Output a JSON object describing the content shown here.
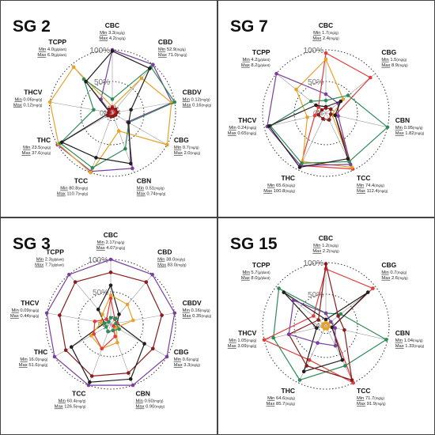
{
  "figure": {
    "colors": {
      "frame": "#444444",
      "grid": "#333333",
      "axis": "#333333",
      "series": [
        "#7a3fa0",
        "#e8a227",
        "#2e8b57",
        "#1f1f1f",
        "#e23b3b",
        "#8b1a1a",
        "#c8c800",
        "#444444"
      ]
    }
  },
  "chart_data": [
    {
      "type": "radar",
      "title": "SG 2",
      "center": "0%",
      "rings": [
        "50%",
        "100%"
      ],
      "axes": [
        {
          "name": "CBC",
          "min": "3.3",
          "min_unit": "(mg/g)",
          "max": "4.2",
          "max_unit": "(mg/g)"
        },
        {
          "name": "CBD",
          "min": "52.9",
          "min_unit": "(mg/g)",
          "max": "71.0",
          "max_unit": "(mg/g)"
        },
        {
          "name": "CBDV",
          "min": "0.12",
          "min_unit": "(mg/g)",
          "max": "0.16",
          "max_unit": "(mg/g)"
        },
        {
          "name": "CBG",
          "min": "0.7",
          "min_unit": "(mg/g)",
          "max": "2.0",
          "max_unit": "(mg/g)"
        },
        {
          "name": "CBN",
          "min": "0.51",
          "min_unit": "(mg/g)",
          "max": "0.74",
          "max_unit": "(mg/g)"
        },
        {
          "name": "TCC",
          "min": "80.8",
          "min_unit": "(mg/g)",
          "max": "110.7",
          "max_unit": "(mg/g)"
        },
        {
          "name": "THC",
          "min": "23.5",
          "min_unit": "(mg/g)",
          "max": "37.6",
          "max_unit": "(mg/g)"
        },
        {
          "name": "THCV",
          "min": "0.06",
          "min_unit": "(mg/g)",
          "max": "0.12",
          "max_unit": "(mg/g)"
        },
        {
          "name": "TCPP",
          "min": "4.0",
          "min_unit": "(g/plant)",
          "max": "6.9",
          "max_unit": "(g/plant)"
        }
      ],
      "series": [
        {
          "color": "#7a3fa0",
          "values": [
            1.0,
            1.0,
            0.96,
            0.28,
            0.93,
            0.98,
            1.0,
            0.0,
            0.28
          ]
        },
        {
          "color": "#e8a227",
          "values": [
            0.1,
            0.72,
            0.95,
            1.0,
            0.3,
            1.0,
            0.98,
            1.0,
            0.95
          ]
        },
        {
          "color": "#2e8b57",
          "values": [
            0.22,
            0.95,
            1.0,
            0.3,
            0.6,
            0.92,
            0.95,
            0.3,
            0.7
          ]
        },
        {
          "color": "#1f1f1f",
          "values": [
            0.98,
            0.92,
            0.3,
            0.3,
            0.85,
            0.75,
            0.92,
            0.0,
            0.65
          ]
        },
        {
          "color": "#e23b3b",
          "values": [
            0.1,
            0.05,
            0.05,
            0.05,
            0.05,
            0.05,
            0.05,
            0.05,
            0.05
          ]
        },
        {
          "color": "#8b1a1a",
          "values": [
            0.08,
            0.08,
            0.08,
            0.06,
            0.05,
            0.06,
            0.08,
            0.06,
            0.08
          ]
        }
      ]
    },
    {
      "type": "radar",
      "title": "SG 7",
      "center": "0%",
      "rings": [
        "50%",
        "100%"
      ],
      "axes": [
        {
          "name": "CBC",
          "min": "1.7",
          "min_unit": "(mg/g)",
          "max": "2.4",
          "max_unit": "(mg/g)"
        },
        {
          "name": "CBG",
          "min": "1.5",
          "min_unit": "(mg/g)",
          "max": "8.9",
          "max_unit": "(mg/g)"
        },
        {
          "name": "CBN",
          "min": "0.95",
          "min_unit": "(mg/g)",
          "max": "1.82",
          "max_unit": "(mg/g)"
        },
        {
          "name": "TCC",
          "min": "74.4",
          "min_unit": "(mg/g)",
          "max": "112.4",
          "max_unit": "(mg/g)"
        },
        {
          "name": "THC",
          "min": "65.6",
          "min_unit": "(mg/g)",
          "max": "100.8",
          "max_unit": "(mg/g)"
        },
        {
          "name": "THCV",
          "min": "0.24",
          "min_unit": "(mg/g)",
          "max": "0.65",
          "max_unit": "(mg/g)"
        },
        {
          "name": "TCPP",
          "min": "4.2",
          "min_unit": "(g/plant)",
          "max": "8.2",
          "max_unit": "(g/plant)"
        }
      ],
      "series": [
        {
          "color": "#e23b3b",
          "values": [
            0.95,
            0.9,
            0.15,
            0.98,
            0.92,
            0.18,
            0.15
          ]
        },
        {
          "color": "#e8a227",
          "values": [
            0.85,
            0.35,
            0.1,
            0.95,
            0.85,
            0.3,
            0.6
          ]
        },
        {
          "color": "#7a3fa0",
          "values": [
            0.3,
            0.25,
            0.2,
            0.9,
            0.92,
            0.95,
            1.0
          ]
        },
        {
          "color": "#2e8b57",
          "values": [
            0.2,
            0.45,
            1.0,
            0.85,
            0.88,
            0.9,
            0.3
          ]
        },
        {
          "color": "#1f1f1f",
          "values": [
            0.1,
            0.3,
            0.15,
            0.8,
            0.95,
            0.92,
            0.2
          ]
        },
        {
          "color": "#8b1a1a",
          "values": [
            0.08,
            0.1,
            0.08,
            0.12,
            0.1,
            0.12,
            0.08
          ]
        }
      ]
    },
    {
      "type": "radar",
      "title": "SG 3",
      "center": "0%",
      "rings": [
        "50%",
        "100%"
      ],
      "axes": [
        {
          "name": "CBC",
          "min": "2.17",
          "min_unit": "(mg/g)",
          "max": "4.07",
          "max_unit": "(mg/g)"
        },
        {
          "name": "CBD",
          "min": "38.0",
          "min_unit": "(mg/g)",
          "max": "83.0",
          "max_unit": "(mg/g)"
        },
        {
          "name": "CBDV",
          "min": "0.16",
          "min_unit": "(mg/g)",
          "max": "0.35",
          "max_unit": "(mg/g)"
        },
        {
          "name": "CBG",
          "min": "0.6",
          "min_unit": "(mg/g)",
          "max": "3.3",
          "max_unit": "(mg/g)"
        },
        {
          "name": "CBN",
          "min": "0.50",
          "min_unit": "(mg/g)",
          "max": "0.90",
          "max_unit": "(mg/g)"
        },
        {
          "name": "TCC",
          "min": "60.4",
          "min_unit": "(mg/g)",
          "max": "126.5",
          "max_unit": "(mg/g)"
        },
        {
          "name": "THC",
          "min": "16.0",
          "min_unit": "(mg/g)",
          "max": "51.6",
          "max_unit": "(mg/g)"
        },
        {
          "name": "THCV",
          "min": "0.09",
          "min_unit": "(mg/g)",
          "max": "0.44",
          "max_unit": "(mg/g)"
        },
        {
          "name": "TCPP",
          "min": "2.3",
          "min_unit": "(g/plant)",
          "max": "7.7",
          "max_unit": "(g/plant)"
        }
      ],
      "series": [
        {
          "color": "#7a3fa0",
          "values": [
            1.0,
            1.0,
            1.0,
            1.0,
            1.0,
            1.0,
            1.0,
            1.0,
            1.0
          ]
        },
        {
          "color": "#8b1a1a",
          "values": [
            0.8,
            0.85,
            0.8,
            0.75,
            0.8,
            0.85,
            0.8,
            0.8,
            0.85
          ]
        },
        {
          "color": "#1f1f1f",
          "values": [
            0.6,
            0.2,
            0.1,
            0.6,
            0.9,
            0.95,
            0.7,
            0.1,
            0.3
          ]
        },
        {
          "color": "#e8a227",
          "values": [
            0.45,
            0.4,
            0.35,
            0.1,
            0.3,
            0.4,
            0.35,
            0.15,
            0.2
          ]
        },
        {
          "color": "#e23b3b",
          "values": [
            0.4,
            0.1,
            0.1,
            0.05,
            0.2,
            0.4,
            0.3,
            0.25,
            0.1
          ]
        },
        {
          "color": "#2e8b57",
          "values": [
            0.1,
            0.12,
            0.08,
            0.15,
            0.1,
            0.12,
            0.08,
            0.1,
            0.05
          ]
        }
      ]
    },
    {
      "type": "radar",
      "title": "SG 15",
      "center": "0%",
      "rings": [
        "50%",
        "100%"
      ],
      "axes": [
        {
          "name": "CBC",
          "min": "1.2",
          "min_unit": "(mg/g)",
          "max": "2.2",
          "max_unit": "(mg/g)"
        },
        {
          "name": "CBG",
          "min": "0.7",
          "min_unit": "(mg/g)",
          "max": "2.6",
          "max_unit": "(mg/g)"
        },
        {
          "name": "CBN",
          "min": "1.04",
          "min_unit": "(mg/g)",
          "max": "1.33",
          "max_unit": "(mg/g)"
        },
        {
          "name": "TCC",
          "min": "71.7",
          "min_unit": "(mg/g)",
          "max": "91.9",
          "max_unit": "(mg/g)"
        },
        {
          "name": "THC",
          "min": "64.6",
          "min_unit": "(mg/g)",
          "max": "85.7",
          "max_unit": "(mg/g)"
        },
        {
          "name": "THCV",
          "min": "1.05",
          "min_unit": "(mg/g)",
          "max": "3.09",
          "max_unit": "(mg/g)"
        },
        {
          "name": "TCPP",
          "min": "5.7",
          "min_unit": "(g/plant)",
          "max": "8.0",
          "max_unit": "(g/plant)"
        }
      ],
      "series": [
        {
          "color": "#e23b3b",
          "values": [
            0.9,
            0.95,
            0.1,
            1.0,
            0.6,
            1.0,
            0.25
          ]
        },
        {
          "color": "#2e8b57",
          "values": [
            0.2,
            0.3,
            0.98,
            0.7,
            0.95,
            0.85,
            0.95
          ]
        },
        {
          "color": "#1f1f1f",
          "values": [
            0.1,
            0.85,
            0.1,
            0.6,
            0.8,
            0.15,
            0.85
          ]
        },
        {
          "color": "#8b1a1a",
          "values": [
            0.98,
            0.25,
            0.3,
            0.95,
            0.7,
            0.6,
            0.15
          ]
        },
        {
          "color": "#7a3fa0",
          "values": [
            0.2,
            0.1,
            0.15,
            0.35,
            0.3,
            0.6,
            0.65
          ]
        },
        {
          "color": "#e8a227",
          "values": [
            0.05,
            0.05,
            0.05,
            0.05,
            0.05,
            0.05,
            0.05
          ]
        }
      ]
    }
  ]
}
